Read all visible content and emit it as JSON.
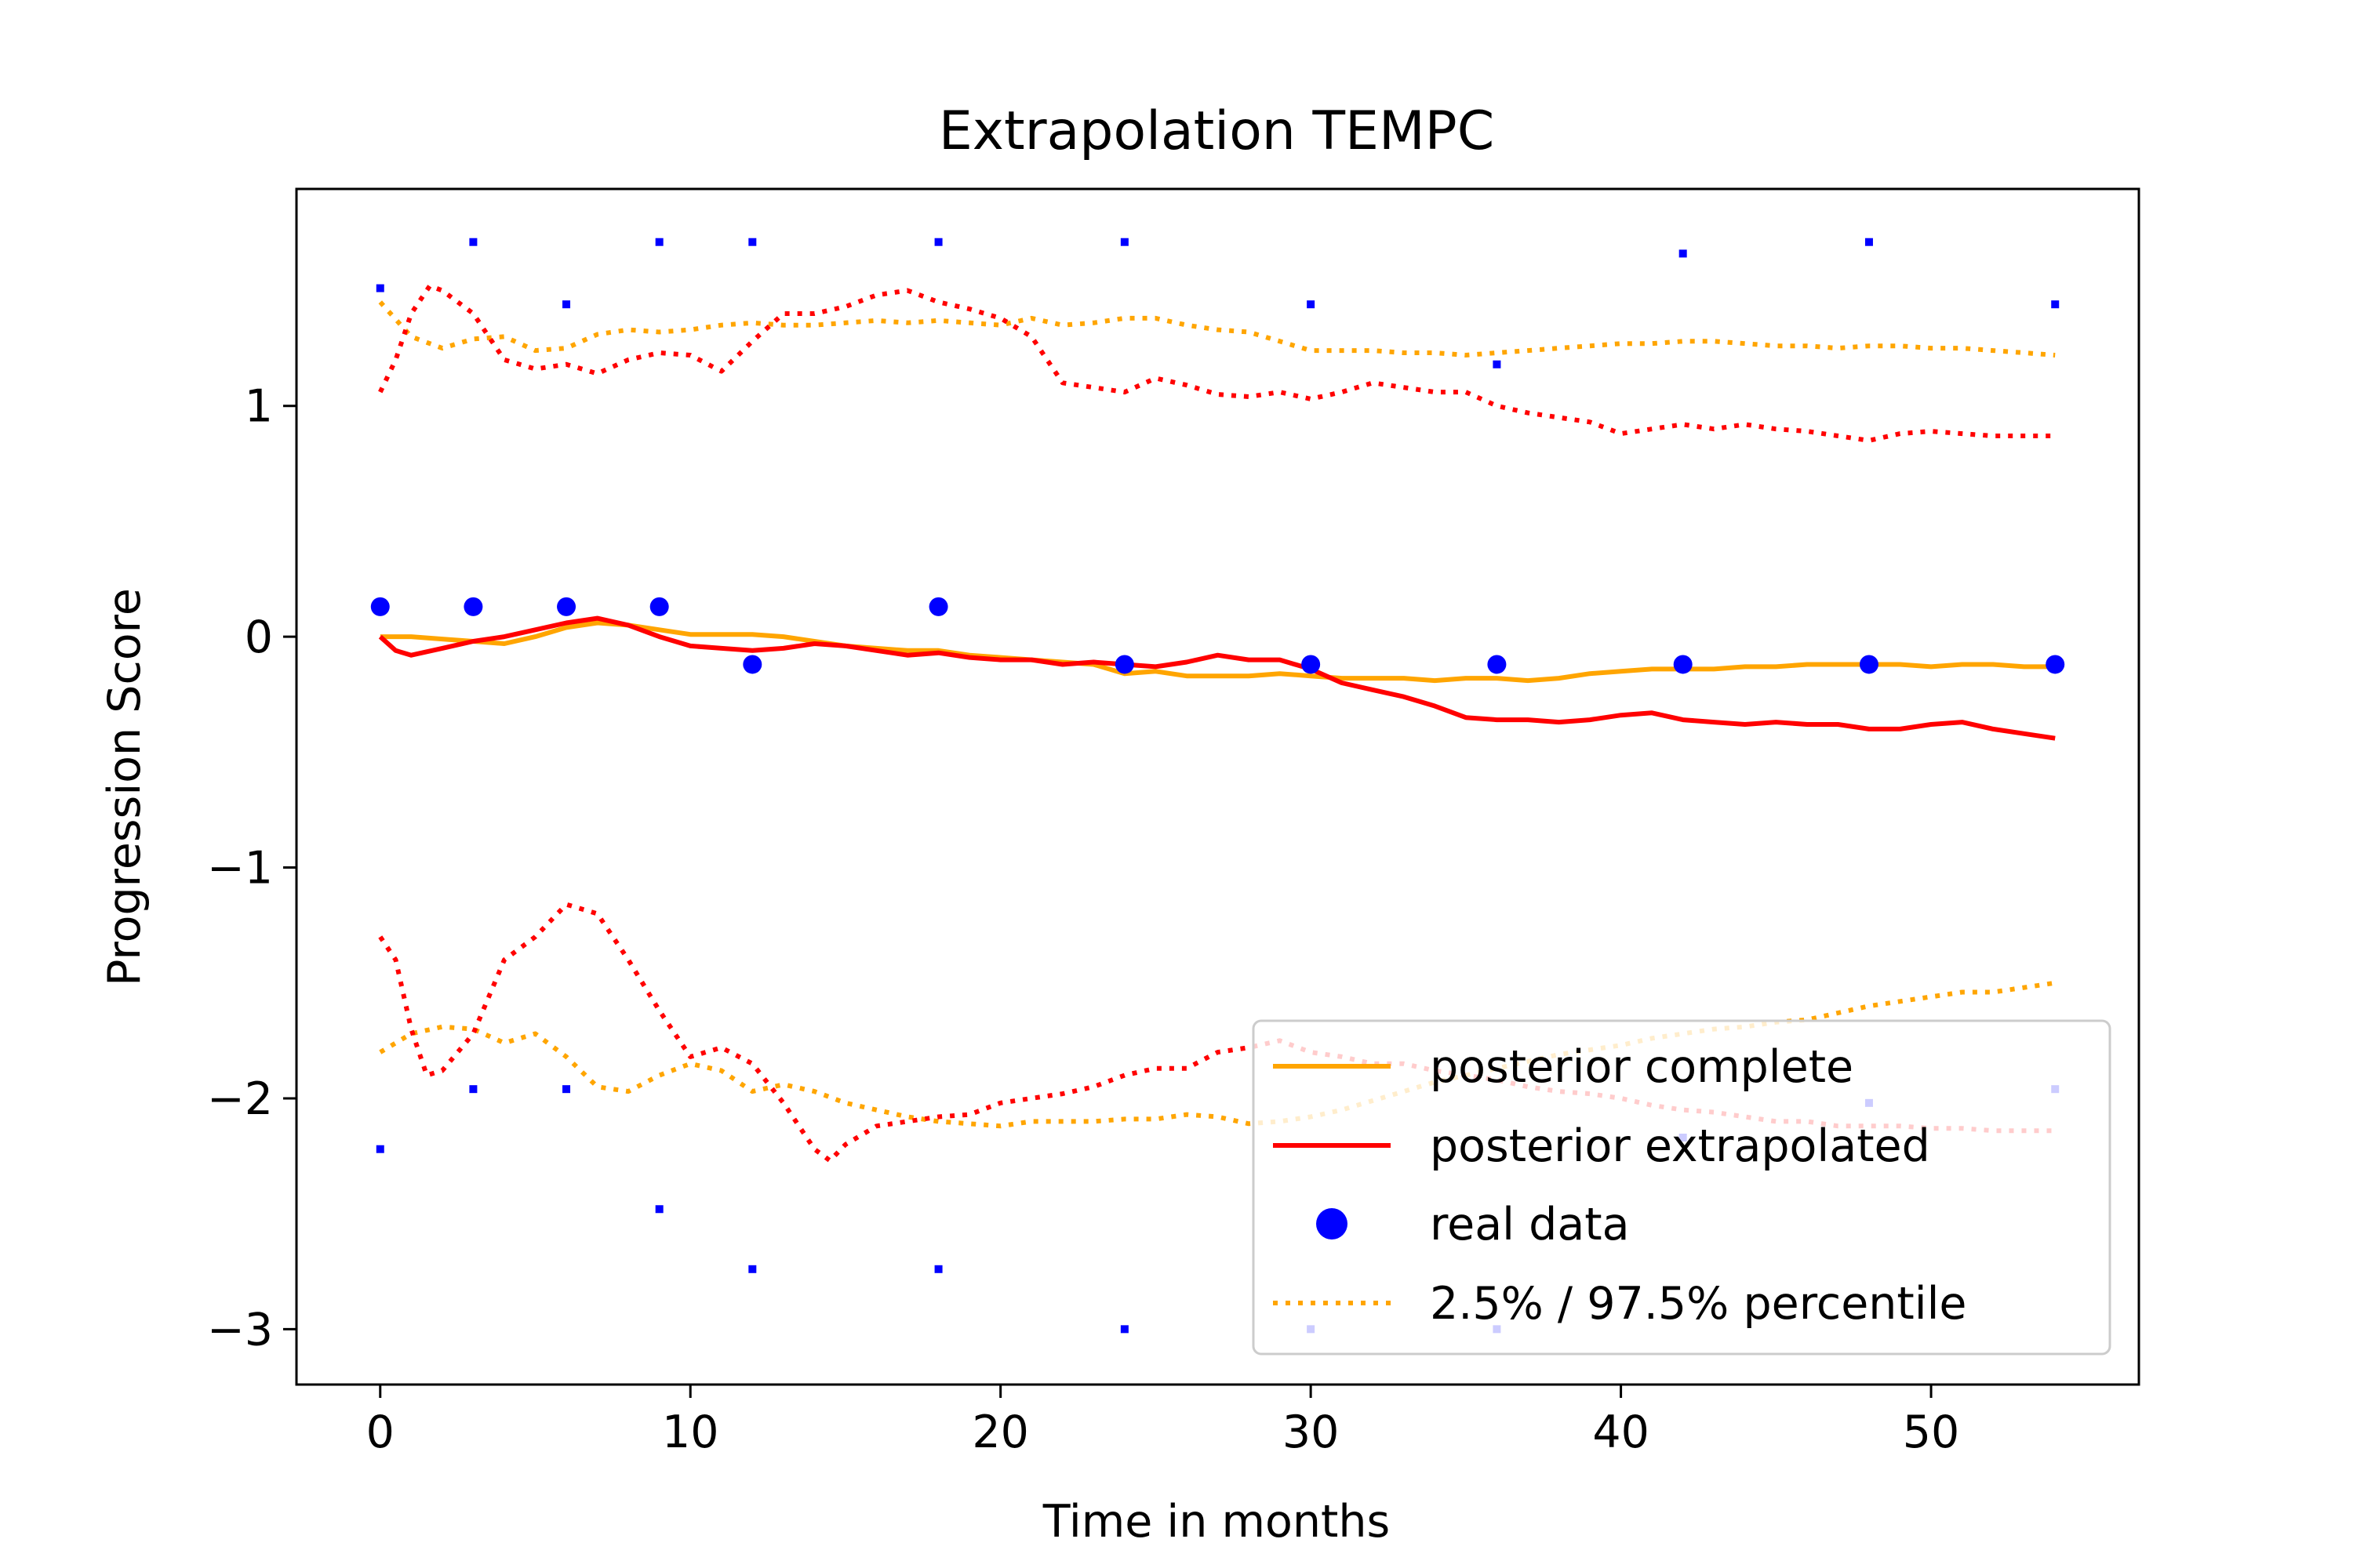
{
  "chart_data": {
    "type": "line",
    "title": "Extrapolation TEMPC",
    "xlabel": "Time in months",
    "ylabel": "Progression Score",
    "xlim": [
      -2.7,
      56.7
    ],
    "ylim": [
      -3.24,
      1.94
    ],
    "xticks": [
      0,
      10,
      20,
      30,
      40,
      50
    ],
    "xtick_labels": [
      "0",
      "10",
      "20",
      "30",
      "40",
      "50"
    ],
    "yticks": [
      -3,
      -2,
      -1,
      0,
      1
    ],
    "ytick_labels": [
      "−3",
      "−2",
      "−1",
      "0",
      "1"
    ],
    "grid": false,
    "legend_position": "lower-right",
    "legend": [
      {
        "label": "posterior complete",
        "style": "solid",
        "color": "#ffa500"
      },
      {
        "label": "posterior extrapolated",
        "style": "solid",
        "color": "#ff0000"
      },
      {
        "label": "real data",
        "style": "marker",
        "color": "#0000ff"
      },
      {
        "label": "2.5% / 97.5% percentile",
        "style": "dotted",
        "color": "#ffa500"
      }
    ],
    "series": [
      {
        "name": "posterior complete",
        "style": "solid",
        "color": "#ffa500",
        "x": [
          0,
          1,
          2,
          3,
          4,
          5,
          6,
          7,
          8,
          9,
          10,
          11,
          12,
          13,
          14,
          15,
          16,
          17,
          18,
          19,
          20,
          21,
          22,
          23,
          24,
          25,
          26,
          27,
          28,
          29,
          30,
          31,
          32,
          33,
          34,
          35,
          36,
          37,
          38,
          39,
          40,
          41,
          42,
          43,
          44,
          45,
          46,
          47,
          48,
          49,
          50,
          51,
          52,
          53,
          54
        ],
        "y": [
          0.0,
          0.0,
          -0.01,
          -0.02,
          -0.03,
          0.0,
          0.04,
          0.06,
          0.05,
          0.03,
          0.01,
          0.01,
          0.01,
          0.0,
          -0.02,
          -0.04,
          -0.05,
          -0.06,
          -0.06,
          -0.08,
          -0.09,
          -0.1,
          -0.11,
          -0.12,
          -0.16,
          -0.15,
          -0.17,
          -0.17,
          -0.17,
          -0.16,
          -0.17,
          -0.18,
          -0.18,
          -0.18,
          -0.19,
          -0.18,
          -0.18,
          -0.19,
          -0.18,
          -0.16,
          -0.15,
          -0.14,
          -0.14,
          -0.14,
          -0.13,
          -0.13,
          -0.12,
          -0.12,
          -0.12,
          -0.12,
          -0.13,
          -0.12,
          -0.12,
          -0.13,
          -0.13
        ]
      },
      {
        "name": "posterior extrapolated",
        "style": "solid",
        "color": "#ff0000",
        "x": [
          0,
          0.5,
          1,
          2,
          3,
          4,
          5,
          6,
          7,
          8,
          9,
          10,
          11,
          12,
          13,
          14,
          15,
          16,
          17,
          18,
          19,
          20,
          21,
          22,
          23,
          24,
          25,
          26,
          27,
          28,
          29,
          30,
          31,
          32,
          33,
          34,
          35,
          36,
          37,
          38,
          39,
          40,
          41,
          42,
          43,
          44,
          45,
          46,
          47,
          48,
          49,
          50,
          51,
          52,
          53,
          54
        ],
        "y": [
          0.0,
          -0.06,
          -0.08,
          -0.05,
          -0.02,
          0.0,
          0.03,
          0.06,
          0.08,
          0.05,
          0.0,
          -0.04,
          -0.05,
          -0.06,
          -0.05,
          -0.03,
          -0.04,
          -0.06,
          -0.08,
          -0.07,
          -0.09,
          -0.1,
          -0.1,
          -0.12,
          -0.11,
          -0.12,
          -0.13,
          -0.11,
          -0.08,
          -0.1,
          -0.1,
          -0.14,
          -0.2,
          -0.23,
          -0.26,
          -0.3,
          -0.35,
          -0.36,
          -0.36,
          -0.37,
          -0.36,
          -0.34,
          -0.33,
          -0.36,
          -0.37,
          -0.38,
          -0.37,
          -0.38,
          -0.38,
          -0.4,
          -0.4,
          -0.38,
          -0.37,
          -0.4,
          -0.42,
          -0.44
        ]
      },
      {
        "name": "2.5% / 97.5% percentile",
        "style": "dotted",
        "color": "#ffa500",
        "x": [
          0,
          1,
          2,
          3,
          4,
          5,
          6,
          7,
          8,
          9,
          10,
          11,
          12,
          13,
          14,
          15,
          16,
          17,
          18,
          19,
          20,
          21,
          22,
          23,
          24,
          25,
          26,
          27,
          28,
          29,
          30,
          31,
          32,
          33,
          34,
          35,
          36,
          37,
          38,
          39,
          40,
          41,
          42,
          43,
          44,
          45,
          46,
          47,
          48,
          49,
          50,
          51,
          52,
          53,
          54
        ],
        "y": [
          1.45,
          1.3,
          1.25,
          1.29,
          1.3,
          1.24,
          1.25,
          1.31,
          1.33,
          1.32,
          1.33,
          1.35,
          1.36,
          1.35,
          1.35,
          1.36,
          1.37,
          1.36,
          1.37,
          1.36,
          1.35,
          1.38,
          1.35,
          1.36,
          1.38,
          1.38,
          1.35,
          1.33,
          1.32,
          1.28,
          1.24,
          1.24,
          1.24,
          1.23,
          1.23,
          1.22,
          1.23,
          1.24,
          1.25,
          1.26,
          1.27,
          1.27,
          1.28,
          1.28,
          1.27,
          1.26,
          1.26,
          1.25,
          1.26,
          1.26,
          1.25,
          1.25,
          1.24,
          1.23,
          1.22
        ]
      },
      {
        "name": "2.5% / 97.5% percentile",
        "style": "dotted",
        "color": "#ffa500",
        "x": [
          0,
          1,
          2,
          3,
          4,
          5,
          6,
          7,
          8,
          9,
          10,
          11,
          12,
          13,
          14,
          15,
          16,
          17,
          18,
          19,
          20,
          21,
          22,
          23,
          24,
          25,
          26,
          27,
          28,
          29,
          30,
          31,
          32,
          33,
          34,
          35,
          36,
          37,
          38,
          39,
          40,
          41,
          42,
          43,
          44,
          45,
          46,
          47,
          48,
          49,
          50,
          51,
          52,
          53,
          54
        ],
        "y": [
          -1.8,
          -1.72,
          -1.69,
          -1.7,
          -1.76,
          -1.72,
          -1.82,
          -1.95,
          -1.97,
          -1.9,
          -1.85,
          -1.88,
          -1.97,
          -1.94,
          -1.97,
          -2.02,
          -2.05,
          -2.08,
          -2.1,
          -2.11,
          -2.12,
          -2.1,
          -2.1,
          -2.1,
          -2.09,
          -2.09,
          -2.07,
          -2.08,
          -2.11,
          -2.1,
          -2.08,
          -2.05,
          -2.01,
          -1.97,
          -1.93,
          -1.9,
          -1.87,
          -1.84,
          -1.81,
          -1.79,
          -1.77,
          -1.74,
          -1.72,
          -1.7,
          -1.69,
          -1.67,
          -1.66,
          -1.63,
          -1.6,
          -1.58,
          -1.56,
          -1.54,
          -1.54,
          -1.52,
          -1.5
        ]
      },
      {
        "name": "",
        "style": "dotted",
        "color": "#ff0000",
        "x": [
          0,
          0.5,
          1,
          1.6,
          2,
          3,
          4,
          5,
          6,
          7,
          8,
          9,
          10,
          11,
          12,
          13,
          14,
          15,
          16,
          17,
          18,
          19,
          20,
          21,
          22,
          23,
          24,
          25,
          26,
          27,
          28,
          29,
          30,
          31,
          32,
          33,
          34,
          35,
          36,
          37,
          38,
          39,
          40,
          41,
          42,
          43,
          44,
          45,
          46,
          47,
          48,
          49,
          50,
          51,
          52,
          53,
          54
        ],
        "y": [
          1.06,
          1.2,
          1.4,
          1.52,
          1.5,
          1.4,
          1.2,
          1.16,
          1.18,
          1.14,
          1.2,
          1.23,
          1.22,
          1.15,
          1.28,
          1.4,
          1.4,
          1.43,
          1.48,
          1.5,
          1.45,
          1.42,
          1.38,
          1.3,
          1.1,
          1.08,
          1.06,
          1.12,
          1.09,
          1.05,
          1.04,
          1.06,
          1.03,
          1.06,
          1.1,
          1.08,
          1.06,
          1.06,
          1.0,
          0.97,
          0.95,
          0.93,
          0.88,
          0.9,
          0.92,
          0.9,
          0.92,
          0.9,
          0.89,
          0.87,
          0.85,
          0.88,
          0.89,
          0.88,
          0.87,
          0.87,
          0.87
        ]
      },
      {
        "name": "",
        "style": "dotted",
        "color": "#ff0000",
        "x": [
          0,
          0.5,
          1,
          1.5,
          2,
          3,
          4,
          5,
          6,
          7,
          8,
          9,
          10,
          11,
          12,
          13,
          14,
          14.5,
          15,
          16,
          17,
          18,
          19,
          20,
          21,
          22,
          23,
          24,
          25,
          26,
          27,
          28,
          29,
          30,
          31,
          32,
          33,
          34,
          35,
          36,
          37,
          38,
          39,
          40,
          41,
          42,
          43,
          44,
          45,
          46,
          47,
          48,
          49,
          50,
          51,
          52,
          53,
          54
        ],
        "y": [
          -1.3,
          -1.4,
          -1.7,
          -1.9,
          -1.88,
          -1.72,
          -1.4,
          -1.3,
          -1.16,
          -1.2,
          -1.4,
          -1.62,
          -1.82,
          -1.78,
          -1.85,
          -2.02,
          -2.22,
          -2.27,
          -2.2,
          -2.12,
          -2.1,
          -2.08,
          -2.07,
          -2.02,
          -2.0,
          -1.98,
          -1.95,
          -1.9,
          -1.87,
          -1.87,
          -1.8,
          -1.78,
          -1.75,
          -1.8,
          -1.82,
          -1.85,
          -1.85,
          -1.88,
          -1.9,
          -1.92,
          -1.95,
          -1.97,
          -1.98,
          -2.0,
          -2.03,
          -2.05,
          -2.06,
          -2.08,
          -2.1,
          -2.1,
          -2.12,
          -2.12,
          -2.12,
          -2.13,
          -2.13,
          -2.14,
          -2.14,
          -2.14
        ]
      }
    ],
    "real_data": {
      "name": "real data",
      "color": "#0000ff",
      "x": [
        0,
        3,
        6,
        9,
        12,
        18,
        24,
        30,
        36,
        42,
        48,
        54
      ],
      "y": [
        0.13,
        0.13,
        0.13,
        0.13,
        -0.12,
        0.13,
        -0.12,
        -0.12,
        -0.12,
        -0.12,
        -0.12,
        -0.12
      ]
    },
    "real_data_bounds_upper": {
      "color": "#0000ff",
      "x": [
        0,
        3,
        6,
        9,
        12,
        18,
        24,
        30,
        36,
        42,
        48,
        54
      ],
      "y": [
        1.51,
        1.71,
        1.44,
        1.71,
        1.71,
        1.71,
        1.71,
        1.44,
        1.18,
        1.66,
        1.71,
        1.44
      ]
    },
    "real_data_bounds_lower": {
      "color": "#0000ff",
      "x": [
        0,
        3,
        6,
        9,
        12,
        18,
        24,
        30,
        36,
        42,
        48,
        54
      ],
      "y": [
        -2.22,
        -1.96,
        -1.96,
        -2.48,
        -2.74,
        -2.74,
        -3.0,
        -3.0,
        -3.0,
        -2.17,
        -2.02,
        -1.96
      ]
    }
  }
}
